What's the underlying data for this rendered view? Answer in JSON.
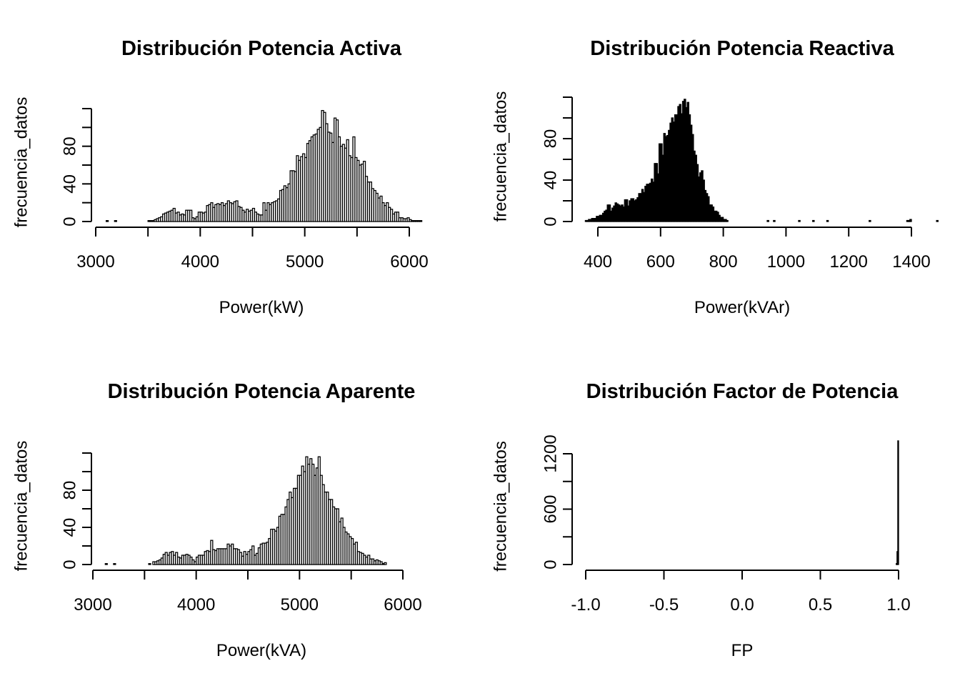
{
  "chart_data": [
    {
      "type": "bar",
      "title": "Distribución Potencia Activa",
      "xlabel": "Power(kW)",
      "ylabel": "frecuencia_datos",
      "xlim": [
        3000,
        6100
      ],
      "ylim": [
        0,
        120
      ],
      "x_ticks": [
        3000,
        3500,
        4000,
        4500,
        5000,
        5500,
        6000
      ],
      "x_tick_labels": [
        "3000",
        "",
        "4000",
        "",
        "5000",
        "",
        "6000"
      ],
      "y_ticks": [
        0,
        20,
        40,
        60,
        80,
        100,
        120
      ],
      "y_tick_labels": [
        "0",
        "",
        "40",
        "",
        "80",
        "",
        ""
      ],
      "bin_start": 3100,
      "bin_width": 20,
      "values": [
        1,
        0,
        0,
        0,
        1,
        0,
        0,
        0,
        0,
        0,
        0,
        0,
        0,
        0,
        0,
        0,
        0,
        0,
        0,
        0,
        1,
        1,
        1,
        2,
        3,
        4,
        5,
        8,
        9,
        10,
        11,
        12,
        14,
        9,
        10,
        7,
        8,
        7,
        12,
        12,
        12,
        4,
        3,
        5,
        10,
        10,
        9,
        10,
        17,
        18,
        20,
        15,
        18,
        19,
        18,
        20,
        17,
        19,
        22,
        20,
        19,
        21,
        22,
        16,
        15,
        12,
        10,
        13,
        11,
        12,
        14,
        10,
        8,
        7,
        7,
        20,
        12,
        20,
        18,
        20,
        21,
        22,
        24,
        33,
        34,
        38,
        36,
        40,
        54,
        54,
        53,
        70,
        65,
        69,
        72,
        68,
        83,
        86,
        90,
        92,
        93,
        98,
        100,
        118,
        116,
        104,
        95,
        94,
        84,
        110,
        108,
        90,
        80,
        82,
        78,
        87,
        70,
        68,
        90,
        68,
        65,
        60,
        61,
        64,
        48,
        42,
        42,
        35,
        33,
        30,
        25,
        27,
        20,
        17,
        20,
        15,
        13,
        8,
        10,
        10,
        4,
        4,
        3,
        3,
        4,
        2,
        1,
        1,
        1,
        1,
        1,
        0
      ]
    },
    {
      "type": "bar",
      "title": "Distribución Potencia Reactiva",
      "xlabel": "Power(kVAr)",
      "ylabel": "frecuencia_datos",
      "xlim": [
        350,
        1400
      ],
      "ylim": [
        0,
        120
      ],
      "x_ticks": [
        400,
        600,
        800,
        1000,
        1200,
        1400
      ],
      "x_tick_labels": [
        "400",
        "600",
        "800",
        "1000",
        "1200",
        "1400"
      ],
      "y_ticks": [
        0,
        20,
        40,
        60,
        80,
        100,
        120
      ],
      "y_tick_labels": [
        "0",
        "",
        "40",
        "",
        "80",
        "",
        ""
      ],
      "bin_start": 360,
      "bin_width": 5,
      "values": [
        1,
        1,
        2,
        2,
        3,
        3,
        3,
        5,
        5,
        6,
        6,
        8,
        10,
        11,
        16,
        16,
        10,
        13,
        15,
        18,
        17,
        16,
        15,
        16,
        14,
        21,
        21,
        15,
        20,
        22,
        22,
        20,
        21,
        23,
        27,
        27,
        31,
        28,
        34,
        36,
        36,
        37,
        41,
        38,
        56,
        56,
        46,
        75,
        75,
        64,
        85,
        82,
        83,
        88,
        95,
        100,
        96,
        103,
        103,
        111,
        113,
        104,
        116,
        118,
        110,
        115,
        103,
        93,
        84,
        68,
        64,
        55,
        43,
        47,
        49,
        40,
        30,
        27,
        24,
        16,
        16,
        14,
        10,
        10,
        9,
        6,
        4,
        4,
        2,
        2,
        1,
        0,
        0,
        0,
        0,
        0,
        0,
        0,
        0,
        0,
        0,
        0,
        0,
        0,
        0,
        0,
        0,
        0,
        0,
        0,
        0,
        0,
        0,
        0,
        0,
        0,
        1,
        0,
        0,
        0,
        1,
        0,
        0,
        0,
        0,
        0,
        0,
        0,
        0,
        0,
        0,
        0,
        0,
        0,
        0,
        0,
        1,
        0,
        0,
        0,
        0,
        0,
        0,
        0,
        0,
        1,
        0,
        0,
        0,
        0,
        0,
        0,
        0,
        0,
        1,
        0,
        0,
        0,
        0,
        0,
        0,
        0,
        0,
        0,
        0,
        0,
        0,
        0,
        0,
        0,
        0,
        0,
        0,
        0,
        0,
        0,
        0,
        0,
        0,
        0,
        0,
        1,
        0,
        0,
        0,
        0,
        0,
        0,
        0,
        0,
        0,
        0,
        0,
        0,
        0,
        0,
        0,
        0,
        0,
        0,
        0,
        0,
        0,
        0,
        0,
        1,
        1,
        2,
        0,
        0,
        0,
        0,
        0,
        0,
        0,
        0,
        0,
        0,
        0,
        0,
        0,
        0,
        0,
        0,
        1
      ]
    },
    {
      "type": "bar",
      "title": "Distribución Potencia Aparente",
      "xlabel": "Power(kVA)",
      "ylabel": "frecuencia_datos",
      "xlim": [
        3000,
        6200
      ],
      "ylim": [
        0,
        120
      ],
      "x_ticks": [
        3000,
        3500,
        4000,
        4500,
        5000,
        5500,
        6000
      ],
      "x_tick_labels": [
        "3000",
        "",
        "4000",
        "",
        "5000",
        "",
        "6000"
      ],
      "y_ticks": [
        0,
        20,
        40,
        60,
        80,
        100,
        120
      ],
      "y_tick_labels": [
        "0",
        "",
        "40",
        "",
        "80",
        "",
        ""
      ],
      "bin_start": 3120,
      "bin_width": 20,
      "values": [
        1,
        0,
        0,
        0,
        1,
        0,
        0,
        0,
        0,
        0,
        0,
        0,
        0,
        0,
        0,
        0,
        0,
        0,
        0,
        0,
        0,
        1,
        0,
        3,
        3,
        4,
        5,
        7,
        11,
        13,
        10,
        13,
        14,
        10,
        13,
        8,
        7,
        10,
        10,
        11,
        10,
        8,
        5,
        3,
        8,
        10,
        10,
        10,
        14,
        15,
        14,
        26,
        16,
        15,
        17,
        17,
        17,
        17,
        17,
        22,
        20,
        22,
        17,
        17,
        16,
        13,
        9,
        14,
        11,
        14,
        16,
        20,
        10,
        12,
        18,
        22,
        23,
        23,
        24,
        28,
        38,
        38,
        36,
        40,
        52,
        54,
        54,
        62,
        70,
        78,
        72,
        82,
        82,
        96,
        96,
        106,
        100,
        116,
        108,
        114,
        108,
        96,
        104,
        116,
        96,
        86,
        78,
        78,
        70,
        70,
        62,
        60,
        60,
        46,
        50,
        40,
        35,
        33,
        30,
        28,
        22,
        24,
        14,
        13,
        12,
        10,
        8,
        10,
        6,
        6,
        4,
        5,
        4,
        3,
        1,
        2,
        0
      ]
    },
    {
      "type": "bar",
      "title": "Distribución Factor de Potencia",
      "xlabel": "FP",
      "ylabel": "frecuencia_datos",
      "xlim": [
        -1.0,
        1.0
      ],
      "ylim": [
        0,
        1200
      ],
      "x_ticks": [
        -1.0,
        -0.5,
        0.0,
        0.5,
        1.0
      ],
      "x_tick_labels": [
        "-1.0",
        "-0.5",
        "0.0",
        "0.5",
        "1.0"
      ],
      "y_ticks": [
        0,
        300,
        600,
        900,
        1200
      ],
      "y_tick_labels": [
        "0",
        "",
        "600",
        "",
        "1200"
      ],
      "bin_start": 0.985,
      "bin_width": 0.005,
      "values": [
        10,
        140,
        1340
      ]
    }
  ]
}
